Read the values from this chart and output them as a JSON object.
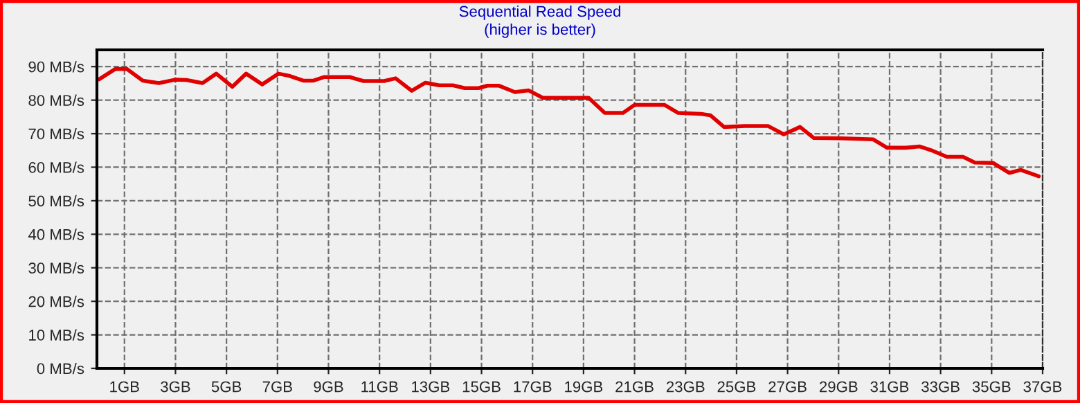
{
  "chart_data": {
    "type": "line",
    "title": "Sequential Read Speed",
    "subtitle": "(higher is better)",
    "series": [
      {
        "color": "#e00000",
        "x": [
          0,
          0.64,
          1.09,
          1.72,
          2.35,
          2.98,
          3.43,
          4.06,
          4.6,
          5.23,
          5.77,
          6.4,
          7.04,
          7.49,
          8.03,
          8.39,
          8.84,
          9.83,
          10.37,
          11.18,
          11.63,
          12.26,
          12.8,
          13.34,
          13.88,
          14.34,
          14.88,
          15.23,
          15.69,
          16.31,
          16.85,
          17.4,
          18.84,
          19.2,
          19.83,
          20.55,
          21,
          22.17,
          22.71,
          23.61,
          23.97,
          24.51,
          25.32,
          26.23,
          26.85,
          27.49,
          28.03,
          29.1,
          30.36,
          30.9,
          31.63,
          32.17,
          32.62,
          33.25,
          33.88,
          34.34,
          35.05,
          35.69,
          36.14,
          36.85
        ],
        "values": [
          86.2,
          89.3,
          89.3,
          85.8,
          85.1,
          86.1,
          86,
          85.1,
          87.9,
          84,
          87.9,
          84.7,
          87.9,
          87.2,
          85.8,
          85.8,
          86.9,
          86.9,
          85.7,
          85.7,
          86.5,
          82.8,
          85.2,
          84.4,
          84.4,
          83.6,
          83.6,
          84.3,
          84.3,
          82.4,
          82.9,
          80.7,
          80.7,
          80.7,
          76.2,
          76.2,
          78.6,
          78.6,
          76.2,
          75.9,
          75.5,
          72,
          72.3,
          72.3,
          69.8,
          72,
          68.7,
          68.6,
          68.3,
          65.8,
          65.8,
          66.2,
          65.1,
          63.1,
          63.1,
          61.4,
          61.3,
          58.3,
          59.2,
          57.3
        ]
      }
    ],
    "xlim": [
      -0.08,
      37
    ],
    "xticks": [
      {
        "value": 1,
        "label": "1GB"
      },
      {
        "value": 3,
        "label": "3GB"
      },
      {
        "value": 5,
        "label": "5GB"
      },
      {
        "value": 7,
        "label": "7GB"
      },
      {
        "value": 9,
        "label": "9GB"
      },
      {
        "value": 11,
        "label": "11GB"
      },
      {
        "value": 13,
        "label": "13GB"
      },
      {
        "value": 15,
        "label": "15GB"
      },
      {
        "value": 17,
        "label": "17GB"
      },
      {
        "value": 19,
        "label": "19GB"
      },
      {
        "value": 21,
        "label": "21GB"
      },
      {
        "value": 23,
        "label": "23GB"
      },
      {
        "value": 25,
        "label": "25GB"
      },
      {
        "value": 27,
        "label": "27GB"
      },
      {
        "value": 29,
        "label": "29GB"
      },
      {
        "value": 31,
        "label": "31GB"
      },
      {
        "value": 33,
        "label": "33GB"
      },
      {
        "value": 35,
        "label": "35GB"
      },
      {
        "value": 37,
        "label": "37GB"
      }
    ],
    "ylim": [
      0,
      95
    ],
    "yticks": [
      {
        "value": 0,
        "label": "0 MB/s"
      },
      {
        "value": 10,
        "label": "10 MB/s"
      },
      {
        "value": 20,
        "label": "20 MB/s"
      },
      {
        "value": 30,
        "label": "30 MB/s"
      },
      {
        "value": 40,
        "label": "40 MB/s"
      },
      {
        "value": 50,
        "label": "50 MB/s"
      },
      {
        "value": 60,
        "label": "60 MB/s"
      },
      {
        "value": 70,
        "label": "70 MB/s"
      },
      {
        "value": 80,
        "label": "80 MB/s"
      },
      {
        "value": 90,
        "label": "90 MB/s"
      }
    ],
    "grid": true,
    "legend": false,
    "marker": "none",
    "line_style": "solid"
  }
}
